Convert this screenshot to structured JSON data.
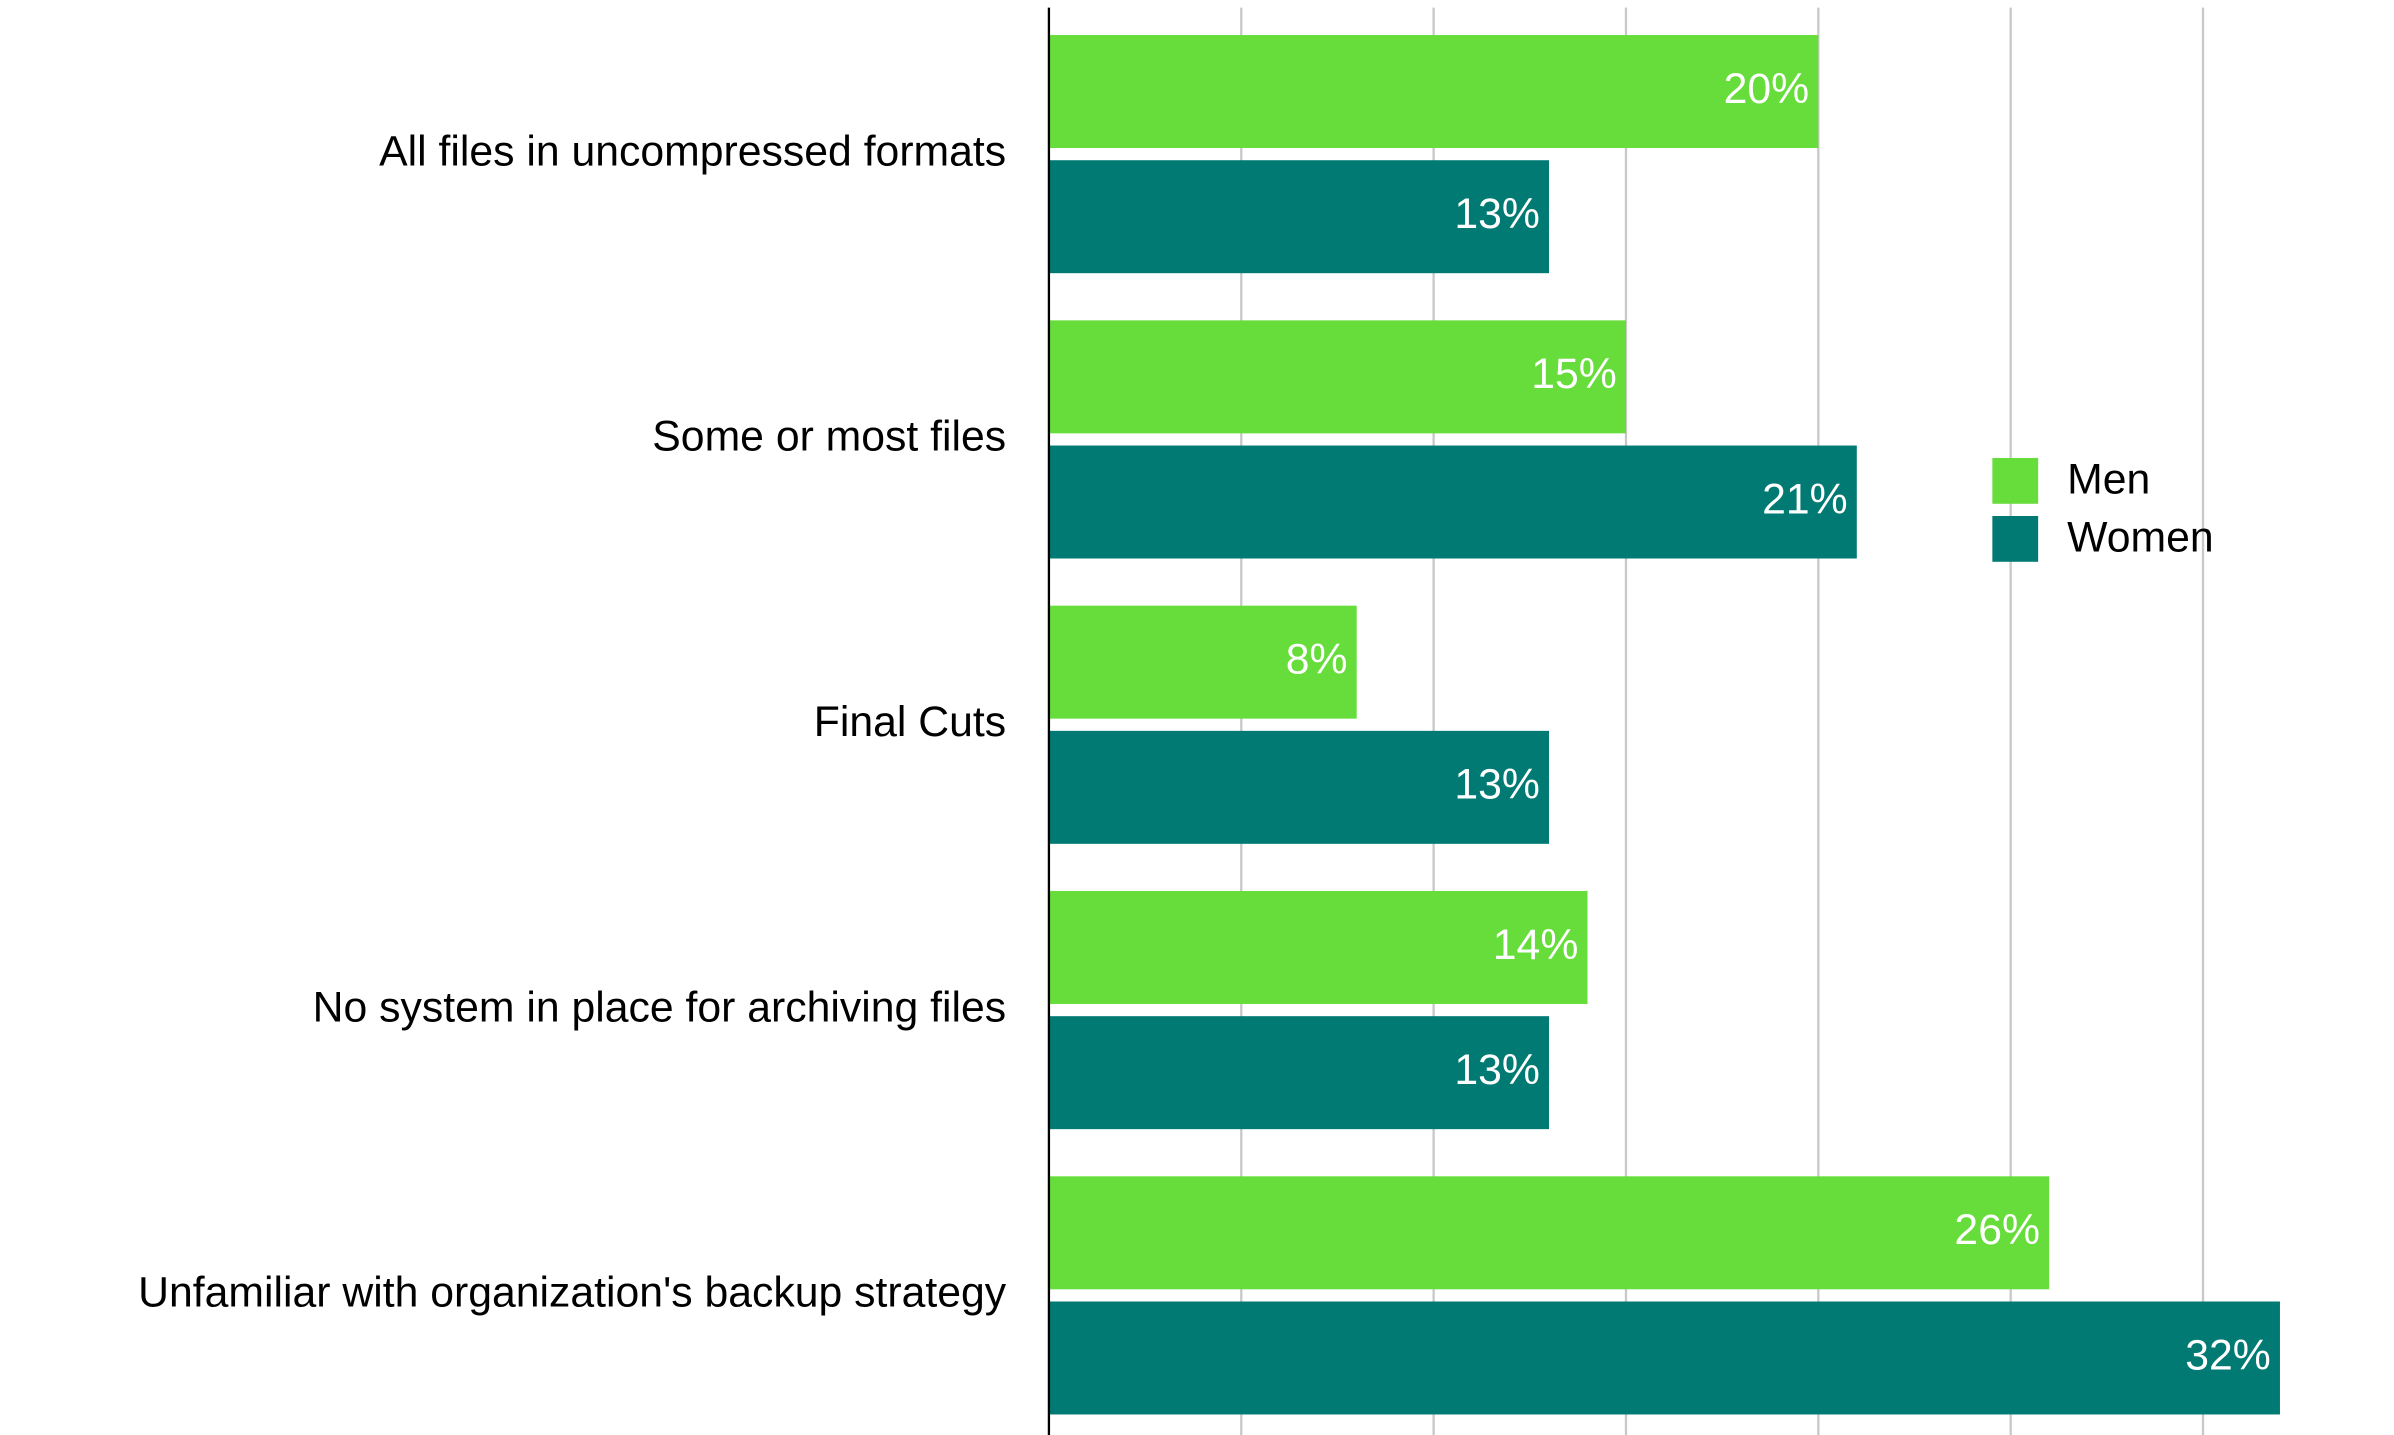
{
  "chart_data": {
    "type": "hbar",
    "categories": [
      "All files in uncompressed formats",
      "Some or most files",
      "Final Cuts",
      "No system in place for archiving files",
      "Unfamiliar with organization's backup strategy"
    ],
    "series": [
      {
        "name": "Men",
        "color": "#66dd3a",
        "values": [
          20,
          15,
          8,
          14,
          26
        ],
        "value_labels": [
          "20%",
          "15%",
          "8%",
          "14%",
          "26%"
        ]
      },
      {
        "name": "Women",
        "color": "#007a73",
        "values": [
          13,
          21,
          13,
          13,
          32
        ],
        "value_labels": [
          "13%",
          "21%",
          "13%",
          "13%",
          "32%"
        ]
      }
    ],
    "xlim": [
      0,
      35
    ],
    "xticks": [
      0,
      5,
      10,
      15,
      20,
      25,
      30
    ],
    "grid": true,
    "legend": "right"
  }
}
